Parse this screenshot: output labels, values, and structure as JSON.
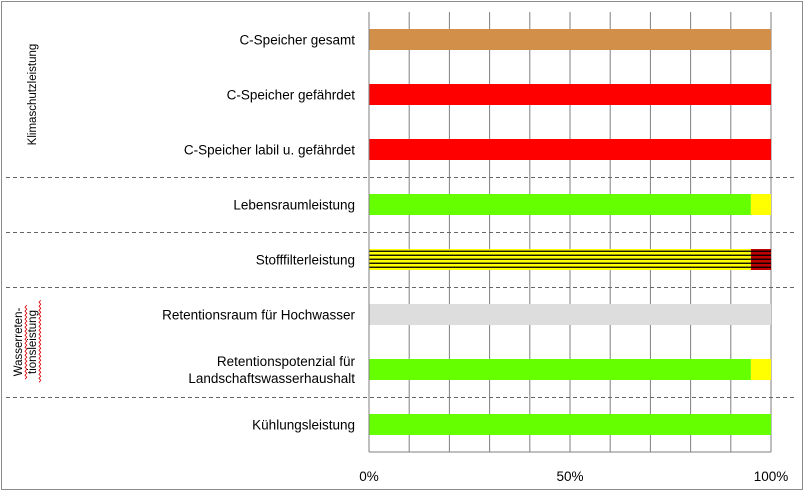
{
  "chart_data": {
    "type": "bar",
    "orientation": "horizontal",
    "stacked": true,
    "xlim": [
      0,
      100
    ],
    "x_ticks": [
      "0%",
      "50%",
      "100%"
    ],
    "grid": true,
    "categories": [
      "C-Speicher gesamt",
      "C-Speicher gefährdet",
      "C-Speicher labil u. gefährdet",
      "Lebensraumleistung",
      "Stofffilterleistung",
      "Retentionsraum für Hochwasser",
      "Retentionspotenzial für\nLandschaftswasserhaushalt",
      "Kühlungsleistung"
    ],
    "bars": [
      [
        {
          "value": 100,
          "color": "#d28f4a",
          "pattern": "solid"
        }
      ],
      [
        {
          "value": 100,
          "color": "#ff0000",
          "pattern": "solid"
        }
      ],
      [
        {
          "value": 100,
          "color": "#ff0000",
          "pattern": "solid"
        }
      ],
      [
        {
          "value": 95,
          "color": "#66ff00",
          "pattern": "solid"
        },
        {
          "value": 5,
          "color": "#ffff00",
          "pattern": "solid"
        }
      ],
      [
        {
          "value": 95,
          "color": "#ffff00",
          "pattern": "hatched"
        },
        {
          "value": 5,
          "color": "#c00000",
          "pattern": "hatched"
        }
      ],
      [
        {
          "value": 100,
          "color": "#dddddd",
          "pattern": "solid"
        }
      ],
      [
        {
          "value": 95,
          "color": "#66ff00",
          "pattern": "solid"
        },
        {
          "value": 5,
          "color": "#ffff00",
          "pattern": "solid"
        }
      ],
      [
        {
          "value": 100,
          "color": "#66ff00",
          "pattern": "solid"
        }
      ]
    ],
    "groups": [
      {
        "label": "Klimaschutzleistung",
        "rows": [
          0,
          1,
          2
        ]
      },
      {
        "label": "Wasserreten-\ntionsleistung",
        "rows": [
          5,
          6
        ],
        "spellcheck_underline": true
      }
    ],
    "separators_after_rows": [
      2,
      3,
      4,
      6
    ]
  }
}
